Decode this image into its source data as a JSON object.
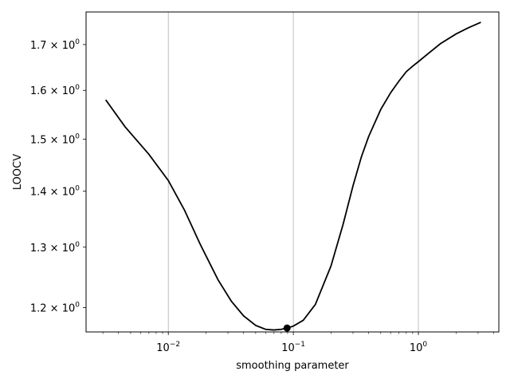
{
  "chart_data": {
    "type": "line",
    "title": "",
    "xlabel": "smoothing parameter",
    "ylabel": "LOOCV",
    "xscale": "log",
    "yscale": "log",
    "xlim": [
      0.0022,
      4.4
    ],
    "ylim": [
      1.162,
      1.775
    ],
    "grid": "x-major",
    "legend": "none",
    "line_color": "#000000",
    "grid_color": "#b0b0b0",
    "x_ticks": [
      {
        "value": 0.01,
        "base": "10",
        "exp": "−2"
      },
      {
        "value": 0.1,
        "base": "10",
        "exp": "−1"
      },
      {
        "value": 1,
        "base": "10",
        "exp": "0"
      }
    ],
    "y_ticks": [
      {
        "value": 1.2,
        "mant": "1.2",
        "base": "10",
        "exp": "0"
      },
      {
        "value": 1.3,
        "mant": "1.3",
        "base": "10",
        "exp": "0"
      },
      {
        "value": 1.4,
        "mant": "1.4",
        "base": "10",
        "exp": "0"
      },
      {
        "value": 1.5,
        "mant": "1.5",
        "base": "10",
        "exp": "0"
      },
      {
        "value": 1.6,
        "mant": "1.6",
        "base": "10",
        "exp": "0"
      },
      {
        "value": 1.7,
        "mant": "1.7",
        "base": "10",
        "exp": "0"
      }
    ],
    "series": [
      {
        "x": [
          0.00316,
          0.0045,
          0.007,
          0.01,
          0.0135,
          0.018,
          0.025,
          0.032,
          0.04,
          0.05,
          0.06,
          0.07,
          0.08,
          0.0891,
          0.1,
          0.12,
          0.15,
          0.2,
          0.25,
          0.3,
          0.35,
          0.4,
          0.5,
          0.6,
          0.7,
          0.8,
          0.9,
          1.0,
          1.2,
          1.5,
          2.0,
          2.5,
          3.16
        ],
        "y": [
          1.58,
          1.525,
          1.47,
          1.42,
          1.365,
          1.305,
          1.245,
          1.21,
          1.187,
          1.172,
          1.166,
          1.165,
          1.166,
          1.168,
          1.171,
          1.18,
          1.205,
          1.268,
          1.34,
          1.41,
          1.465,
          1.505,
          1.56,
          1.595,
          1.62,
          1.64,
          1.652,
          1.662,
          1.68,
          1.702,
          1.724,
          1.738,
          1.751
        ]
      }
    ],
    "marker": {
      "x": 0.0891,
      "y": 1.168
    }
  }
}
